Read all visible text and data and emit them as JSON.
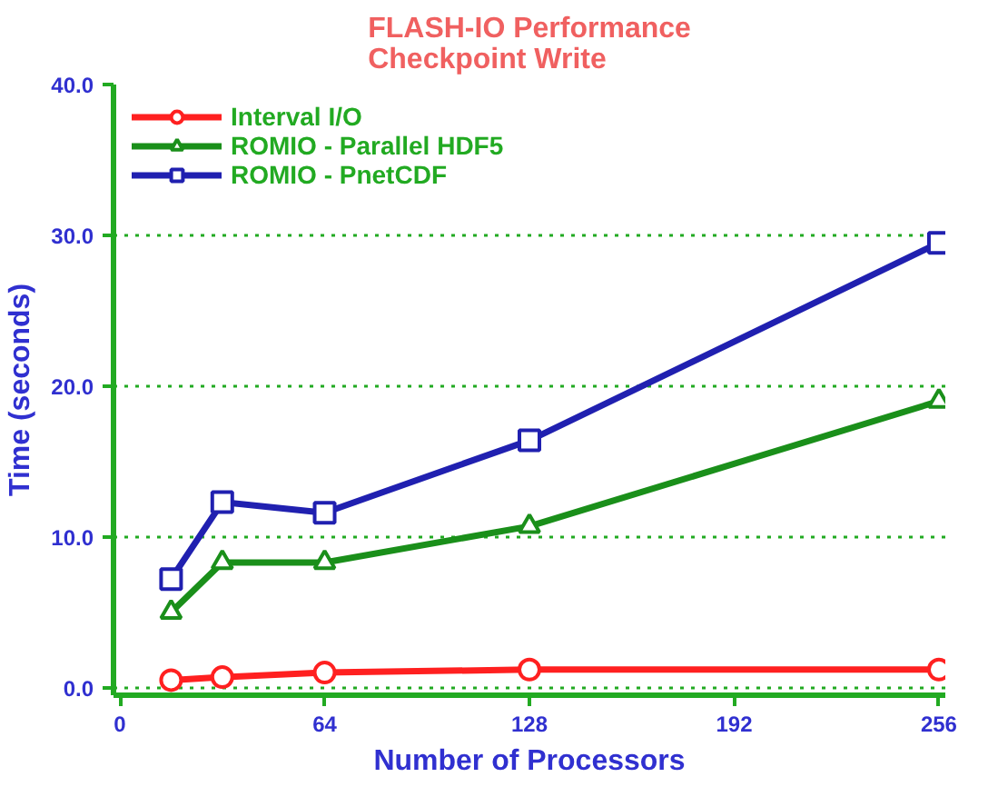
{
  "chart_data": {
    "type": "line",
    "title": "FLASH-IO Performance\nCheckpoint Write",
    "xlabel": "Number of Processors",
    "ylabel": "Time (seconds)",
    "x": [
      16,
      32,
      64,
      128,
      256
    ],
    "series": [
      {
        "name": "Interval I/O",
        "color": "#ff2020",
        "marker": "circle",
        "values": [
          0.5,
          0.7,
          1.0,
          1.2,
          1.2
        ]
      },
      {
        "name": "ROMIO - Parallel HDF5",
        "color": "#1a8f1a",
        "marker": "triangle",
        "values": [
          5.0,
          8.3,
          8.3,
          10.7,
          19.0
        ]
      },
      {
        "name": "ROMIO - PnetCDF",
        "color": "#2020b0",
        "marker": "square",
        "values": [
          7.2,
          12.3,
          11.6,
          16.4,
          29.5
        ]
      }
    ],
    "xlim": [
      -2,
      258
    ],
    "xticks": [
      0,
      64,
      128,
      192,
      256
    ],
    "ylim": [
      -0.5,
      40
    ],
    "yticks": [
      {
        "value": 0,
        "label": "0.0"
      },
      {
        "value": 10,
        "label": "10.0"
      },
      {
        "value": 20,
        "label": "20.0"
      },
      {
        "value": 30,
        "label": "30.0"
      },
      {
        "value": 40,
        "label": "40.0"
      }
    ],
    "grid": "y",
    "legend": "top left",
    "line_style": "solid"
  }
}
